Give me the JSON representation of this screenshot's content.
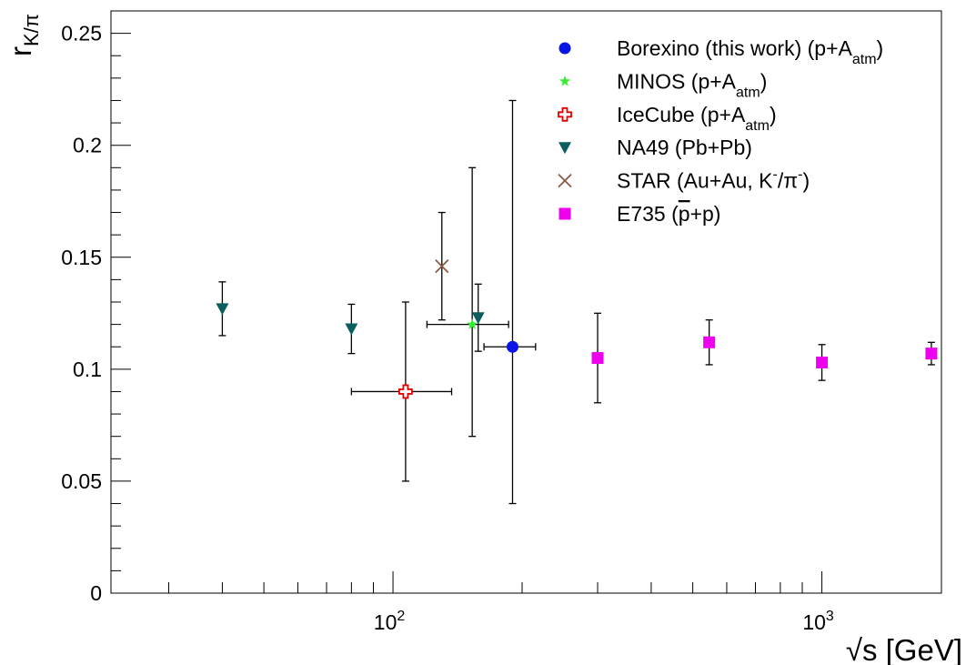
{
  "chart_data": {
    "type": "scatter",
    "x_scale": "log",
    "xlim": [
      22,
      1900
    ],
    "ylim": [
      0,
      0.26
    ],
    "xlabel": "√s [GeV]",
    "ylabel": {
      "main": "r",
      "sub": "K/π"
    },
    "y_ticks": [
      {
        "value": 0,
        "label": "0"
      },
      {
        "value": 0.05,
        "label": "0.05"
      },
      {
        "value": 0.1,
        "label": "0.1"
      },
      {
        "value": 0.15,
        "label": "0.15"
      },
      {
        "value": 0.2,
        "label": "0.2"
      },
      {
        "value": 0.25,
        "label": "0.25"
      }
    ],
    "x_ticks": [
      {
        "value": 100,
        "base": "10",
        "exp": "2"
      },
      {
        "value": 1000,
        "base": "10",
        "exp": "3"
      }
    ],
    "legend_position": "top-right",
    "grid": false,
    "series": [
      {
        "key": "borexino",
        "marker": "circle",
        "color": "#0a14e6",
        "legend": [
          {
            "t": "Borexino (this work) (p+A"
          },
          {
            "t": "atm",
            "s": "sub"
          },
          {
            "t": ")"
          }
        ],
        "points": [
          {
            "x": 190,
            "y": 0.11,
            "ylo": 0.04,
            "yhi": 0.22,
            "xlo": 163,
            "xhi": 215
          }
        ]
      },
      {
        "key": "minos",
        "marker": "star",
        "color": "#33ee33",
        "legend": [
          {
            "t": "MINOS (p+A"
          },
          {
            "t": "atm",
            "s": "sub"
          },
          {
            "t": ")"
          }
        ],
        "points": [
          {
            "x": 153,
            "y": 0.12,
            "ylo": 0.07,
            "yhi": 0.19,
            "xlo": 120,
            "xhi": 186
          }
        ]
      },
      {
        "key": "icecube",
        "marker": "open-cross",
        "color": "#e60000",
        "legend": [
          {
            "t": "IceCube (p+A"
          },
          {
            "t": "atm",
            "s": "sub"
          },
          {
            "t": ")"
          }
        ],
        "points": [
          {
            "x": 107,
            "y": 0.09,
            "ylo": 0.05,
            "yhi": 0.13,
            "xlo": 80,
            "xhi": 137
          }
        ]
      },
      {
        "key": "na49",
        "marker": "triangle-down",
        "color": "#0b5e5e",
        "legend": [
          {
            "t": "NA49 (Pb+Pb)"
          }
        ],
        "points": [
          {
            "x": 40,
            "y": 0.127,
            "ylo": 0.115,
            "yhi": 0.139
          },
          {
            "x": 80,
            "y": 0.118,
            "ylo": 0.107,
            "yhi": 0.129
          },
          {
            "x": 158,
            "y": 0.123,
            "ylo": 0.108,
            "yhi": 0.138
          }
        ]
      },
      {
        "key": "star",
        "marker": "x",
        "color": "#8a5a44",
        "legend": [
          {
            "t": "STAR (Au+Au, K"
          },
          {
            "t": "-",
            "s": "sup"
          },
          {
            "t": "/π"
          },
          {
            "t": "-",
            "s": "sup"
          },
          {
            "t": ")"
          }
        ],
        "points": [
          {
            "x": 130,
            "y": 0.146,
            "ylo": 0.122,
            "yhi": 0.17
          }
        ]
      },
      {
        "key": "e735",
        "marker": "square",
        "color": "#ee00ee",
        "legend": [
          {
            "t": "E735 ("
          },
          {
            "t": "p",
            "s": "over"
          },
          {
            "t": "+p)"
          }
        ],
        "points": [
          {
            "x": 300,
            "y": 0.105,
            "ylo": 0.085,
            "yhi": 0.125
          },
          {
            "x": 546,
            "y": 0.112,
            "ylo": 0.102,
            "yhi": 0.122
          },
          {
            "x": 1000,
            "y": 0.103,
            "ylo": 0.095,
            "yhi": 0.111
          },
          {
            "x": 1800,
            "y": 0.107,
            "ylo": 0.102,
            "yhi": 0.112
          }
        ]
      }
    ]
  }
}
